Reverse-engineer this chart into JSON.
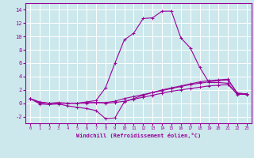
{
  "xlabel": "Windchill (Refroidissement éolien,°C)",
  "bg_color": "#cce8ec",
  "line_color": "#990099",
  "grid_color": "#ffffff",
  "xlim": [
    -0.5,
    23.5
  ],
  "ylim": [
    -3,
    15
  ],
  "xticks": [
    0,
    1,
    2,
    3,
    4,
    5,
    6,
    7,
    8,
    9,
    10,
    11,
    12,
    13,
    14,
    15,
    16,
    17,
    18,
    19,
    20,
    21,
    22,
    23
  ],
  "yticks": [
    -2,
    0,
    2,
    4,
    6,
    8,
    10,
    12,
    14
  ],
  "line1_x": [
    0,
    1,
    2,
    3,
    4,
    5,
    6,
    7,
    8,
    9,
    10,
    11,
    12,
    13,
    14,
    15,
    16,
    17,
    18,
    19,
    20,
    21,
    22,
    23
  ],
  "line1_y": [
    0.7,
    0.2,
    0.0,
    0.1,
    0.0,
    0.0,
    0.2,
    0.4,
    2.3,
    6.0,
    9.5,
    10.5,
    12.7,
    12.8,
    13.8,
    13.8,
    9.8,
    8.3,
    5.4,
    3.1,
    3.1,
    3.0,
    1.3,
    1.4
  ],
  "line2_x": [
    0,
    1,
    2,
    3,
    4,
    5,
    6,
    7,
    8,
    9,
    10,
    11,
    12,
    13,
    14,
    15,
    16,
    17,
    18,
    19,
    20,
    21,
    22,
    23
  ],
  "line2_y": [
    0.7,
    -0.1,
    -0.2,
    -0.1,
    -0.4,
    -0.6,
    -0.8,
    -1.1,
    -2.3,
    -2.2,
    0.2,
    0.7,
    1.2,
    1.6,
    2.0,
    2.3,
    2.6,
    2.9,
    3.2,
    3.4,
    3.5,
    3.6,
    1.5,
    1.4
  ],
  "line3_x": [
    0,
    1,
    2,
    3,
    4,
    5,
    6,
    7,
    8,
    9,
    10,
    11,
    12,
    13,
    14,
    15,
    16,
    17,
    18,
    19,
    20,
    21,
    22,
    23
  ],
  "line3_y": [
    0.7,
    0.1,
    0.0,
    0.0,
    0.0,
    0.0,
    0.1,
    0.1,
    0.1,
    0.3,
    0.7,
    1.0,
    1.3,
    1.6,
    1.9,
    2.2,
    2.5,
    2.8,
    3.0,
    3.2,
    3.4,
    3.5,
    1.5,
    1.4
  ],
  "line4_x": [
    0,
    1,
    2,
    3,
    4,
    5,
    6,
    7,
    8,
    9,
    10,
    11,
    12,
    13,
    14,
    15,
    16,
    17,
    18,
    19,
    20,
    21,
    22,
    23
  ],
  "line4_y": [
    0.7,
    0.1,
    0.0,
    0.0,
    0.0,
    0.0,
    0.0,
    0.1,
    0.0,
    0.1,
    0.3,
    0.6,
    0.9,
    1.2,
    1.5,
    1.8,
    2.0,
    2.2,
    2.4,
    2.6,
    2.7,
    2.8,
    1.4,
    1.3
  ]
}
